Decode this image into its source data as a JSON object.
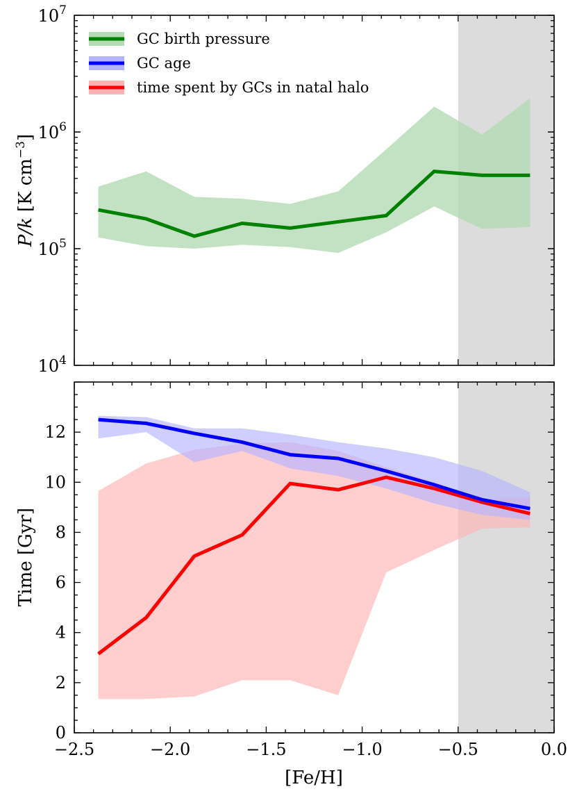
{
  "chart_data": [
    {
      "type": "line",
      "panel": "top",
      "title": "",
      "xlabel": "",
      "ylabel": "P/k [K cm^-3]",
      "ylabel_parts": {
        "var": "P/k",
        "unit_open": "[K cm",
        "unit_exp": "−3",
        "unit_close": "]"
      },
      "yscale": "log",
      "xlim": [
        -2.5,
        0.0
      ],
      "ylim": [
        10000,
        10000000
      ],
      "yticks": [
        {
          "value": 10000,
          "base": "10",
          "exp": "4"
        },
        {
          "value": 100000,
          "base": "10",
          "exp": "5"
        },
        {
          "value": 1000000,
          "base": "10",
          "exp": "6"
        },
        {
          "value": 10000000,
          "base": "10",
          "exp": "7"
        }
      ],
      "shaded_region": {
        "x_from": -0.5,
        "x_to": 0.0,
        "color": "#dcdcdc"
      },
      "x": [
        -2.375,
        -2.125,
        -1.875,
        -1.625,
        -1.375,
        -1.125,
        -0.875,
        -0.625,
        -0.375,
        -0.125
      ],
      "series": [
        {
          "name": "GC birth pressure",
          "color": "#008000",
          "band_color": "#b4dbb4",
          "values": [
            215000,
            180000,
            128000,
            165000,
            150000,
            170000,
            192000,
            460000,
            425000,
            425000
          ],
          "lower": [
            125000,
            105000,
            100000,
            108000,
            103000,
            92000,
            138000,
            230000,
            148000,
            153000
          ],
          "upper": [
            340000,
            460000,
            278000,
            268000,
            242000,
            310000,
            710000,
            1650000,
            950000,
            1950000
          ]
        }
      ],
      "legend": {
        "placement": "top-left",
        "entries": [
          {
            "label": "GC birth pressure",
            "line_color": "#008000",
            "patch_color": "#b4dbb4"
          },
          {
            "label": "GC age",
            "line_color": "#0000ff",
            "patch_color": "#b3b3ff"
          },
          {
            "label": "time spent by GCs in natal halo",
            "line_color": "#ff0000",
            "patch_color": "#ffb3b3"
          }
        ]
      }
    },
    {
      "type": "line",
      "panel": "bottom",
      "title": "",
      "xlabel": "[Fe/H]",
      "ylabel": "Time [Gyr]",
      "yscale": "linear",
      "xlim": [
        -2.5,
        0.0
      ],
      "ylim": [
        0,
        14
      ],
      "xticks": [
        {
          "value": -2.5,
          "label": "−2.5"
        },
        {
          "value": -2.0,
          "label": "−2.0"
        },
        {
          "value": -1.5,
          "label": "−1.5"
        },
        {
          "value": -1.0,
          "label": "−1.0"
        },
        {
          "value": -0.5,
          "label": "−0.5"
        },
        {
          "value": 0.0,
          "label": "0.0"
        }
      ],
      "yticks": [
        {
          "value": 0,
          "label": "0"
        },
        {
          "value": 2,
          "label": "2"
        },
        {
          "value": 4,
          "label": "4"
        },
        {
          "value": 6,
          "label": "6"
        },
        {
          "value": 8,
          "label": "8"
        },
        {
          "value": 10,
          "label": "10"
        },
        {
          "value": 12,
          "label": "12"
        }
      ],
      "shaded_region": {
        "x_from": -0.5,
        "x_to": 0.0,
        "color": "#dcdcdc"
      },
      "x": [
        -2.375,
        -2.125,
        -1.875,
        -1.625,
        -1.375,
        -1.125,
        -0.875,
        -0.625,
        -0.375,
        -0.125
      ],
      "series": [
        {
          "name": "time spent by GCs in natal halo",
          "color": "#ff0000",
          "band_color": "#ffb3b3",
          "values": [
            3.15,
            4.6,
            7.05,
            7.9,
            9.95,
            9.7,
            10.2,
            9.75,
            9.2,
            8.75
          ],
          "lower": [
            1.35,
            1.35,
            1.45,
            2.1,
            2.1,
            1.5,
            6.4,
            7.3,
            8.15,
            8.2
          ],
          "upper": [
            9.65,
            10.75,
            11.3,
            11.55,
            11.6,
            11.25,
            10.6,
            10.0,
            9.35,
            9.4
          ]
        },
        {
          "name": "GC age",
          "color": "#0000ff",
          "band_color": "#b3b3ff",
          "values": [
            12.5,
            12.35,
            11.95,
            11.6,
            11.1,
            10.95,
            10.45,
            9.9,
            9.3,
            8.95
          ],
          "lower": [
            11.75,
            12.0,
            10.8,
            11.25,
            10.55,
            10.25,
            9.75,
            9.15,
            8.7,
            8.5
          ],
          "upper": [
            12.65,
            12.6,
            12.15,
            12.15,
            11.9,
            11.6,
            11.35,
            11.0,
            10.45,
            9.6
          ]
        }
      ]
    }
  ]
}
